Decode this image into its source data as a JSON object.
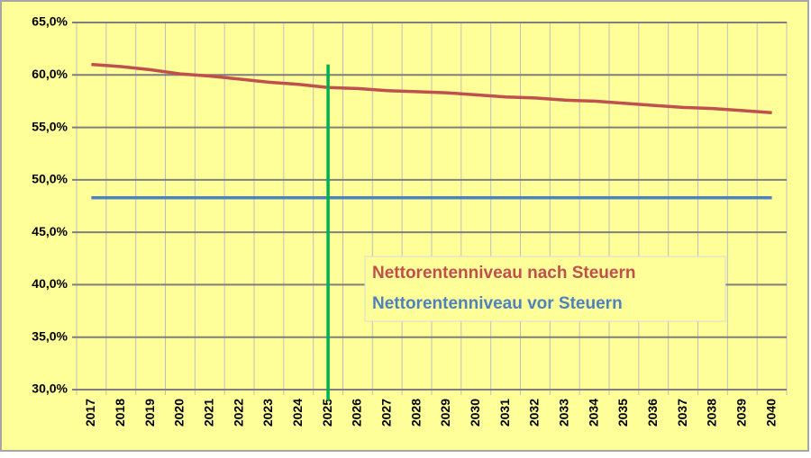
{
  "chart_data": {
    "type": "line",
    "categories": [
      "2017",
      "2018",
      "2019",
      "2020",
      "2021",
      "2022",
      "2023",
      "2024",
      "2025",
      "2026",
      "2027",
      "2028",
      "2029",
      "2030",
      "2031",
      "2032",
      "2033",
      "2034",
      "2035",
      "2036",
      "2037",
      "2038",
      "2039",
      "2040"
    ],
    "series": [
      {
        "name": "Nettorentenniveau nach Steuern",
        "color": "#c0504d",
        "values": [
          61.0,
          60.8,
          60.5,
          60.1,
          59.9,
          59.6,
          59.3,
          59.1,
          58.8,
          58.7,
          58.5,
          58.4,
          58.3,
          58.1,
          57.9,
          57.8,
          57.6,
          57.5,
          57.3,
          57.1,
          56.9,
          56.8,
          56.6,
          56.4
        ]
      },
      {
        "name": "Nettorentenniveau vor Steuern",
        "color": "#4f81bd",
        "values": [
          48.3,
          48.3,
          48.3,
          48.3,
          48.3,
          48.3,
          48.3,
          48.3,
          48.3,
          48.3,
          48.3,
          48.3,
          48.3,
          48.3,
          48.3,
          48.3,
          48.3,
          48.3,
          48.3,
          48.3,
          48.3,
          48.3,
          48.3,
          48.3
        ]
      }
    ],
    "ylim": [
      30,
      65
    ],
    "yticks": [
      {
        "value": 30,
        "label": "30,0%"
      },
      {
        "value": 35,
        "label": "35,0%"
      },
      {
        "value": 40,
        "label": "40,0%"
      },
      {
        "value": 45,
        "label": "45,0%"
      },
      {
        "value": 50,
        "label": "50,0%"
      },
      {
        "value": 55,
        "label": "55,0%"
      },
      {
        "value": 60,
        "label": "60,0%"
      },
      {
        "value": 65,
        "label": "65,0%"
      }
    ],
    "grid": true,
    "legend": "center-right",
    "highlight": {
      "category": "2025",
      "color": "#00b050"
    },
    "background": "#ffff99"
  }
}
